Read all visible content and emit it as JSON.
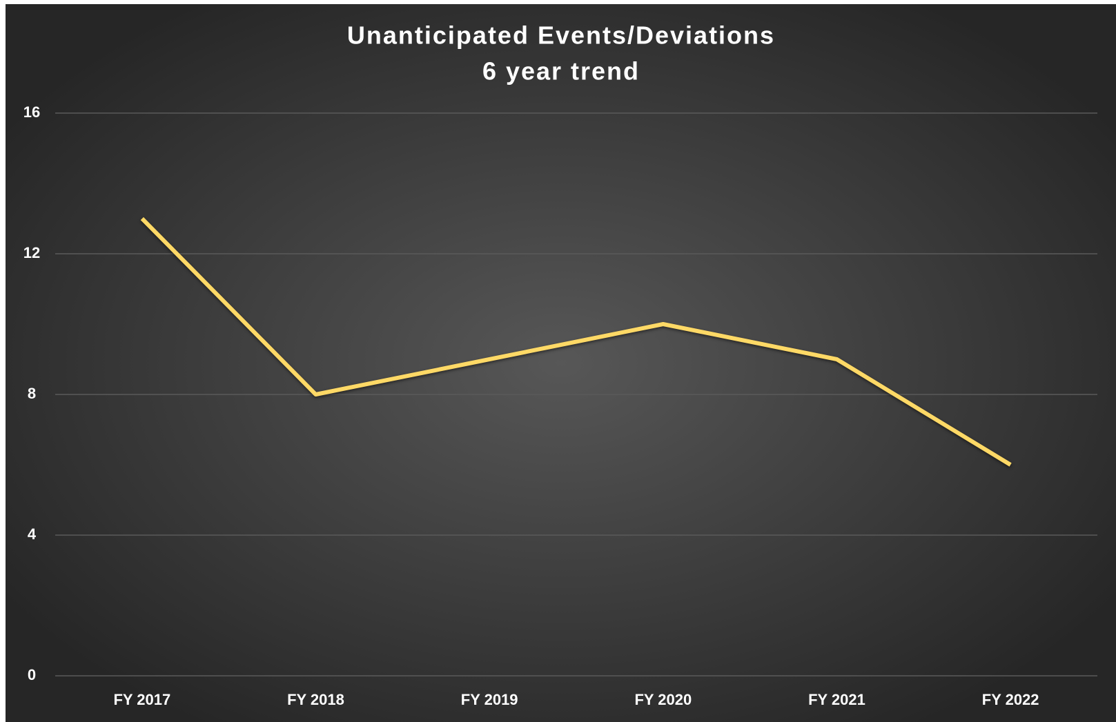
{
  "chart_data": {
    "type": "line",
    "title": "Unanticipated Events/Deviations",
    "subtitle": "6 year trend",
    "categories": [
      "FY 2017",
      "FY 2018",
      "FY 2019",
      "FY 2020",
      "FY 2021",
      "FY 2022"
    ],
    "series": [
      {
        "name": "Unanticipated Events/Deviations",
        "color": "#ffd966",
        "values": [
          13,
          8,
          9,
          10,
          9,
          6
        ]
      }
    ],
    "ylim": [
      0,
      16
    ],
    "yticks": [
      0,
      4,
      8,
      12,
      16
    ],
    "grid": true,
    "legend": false
  }
}
